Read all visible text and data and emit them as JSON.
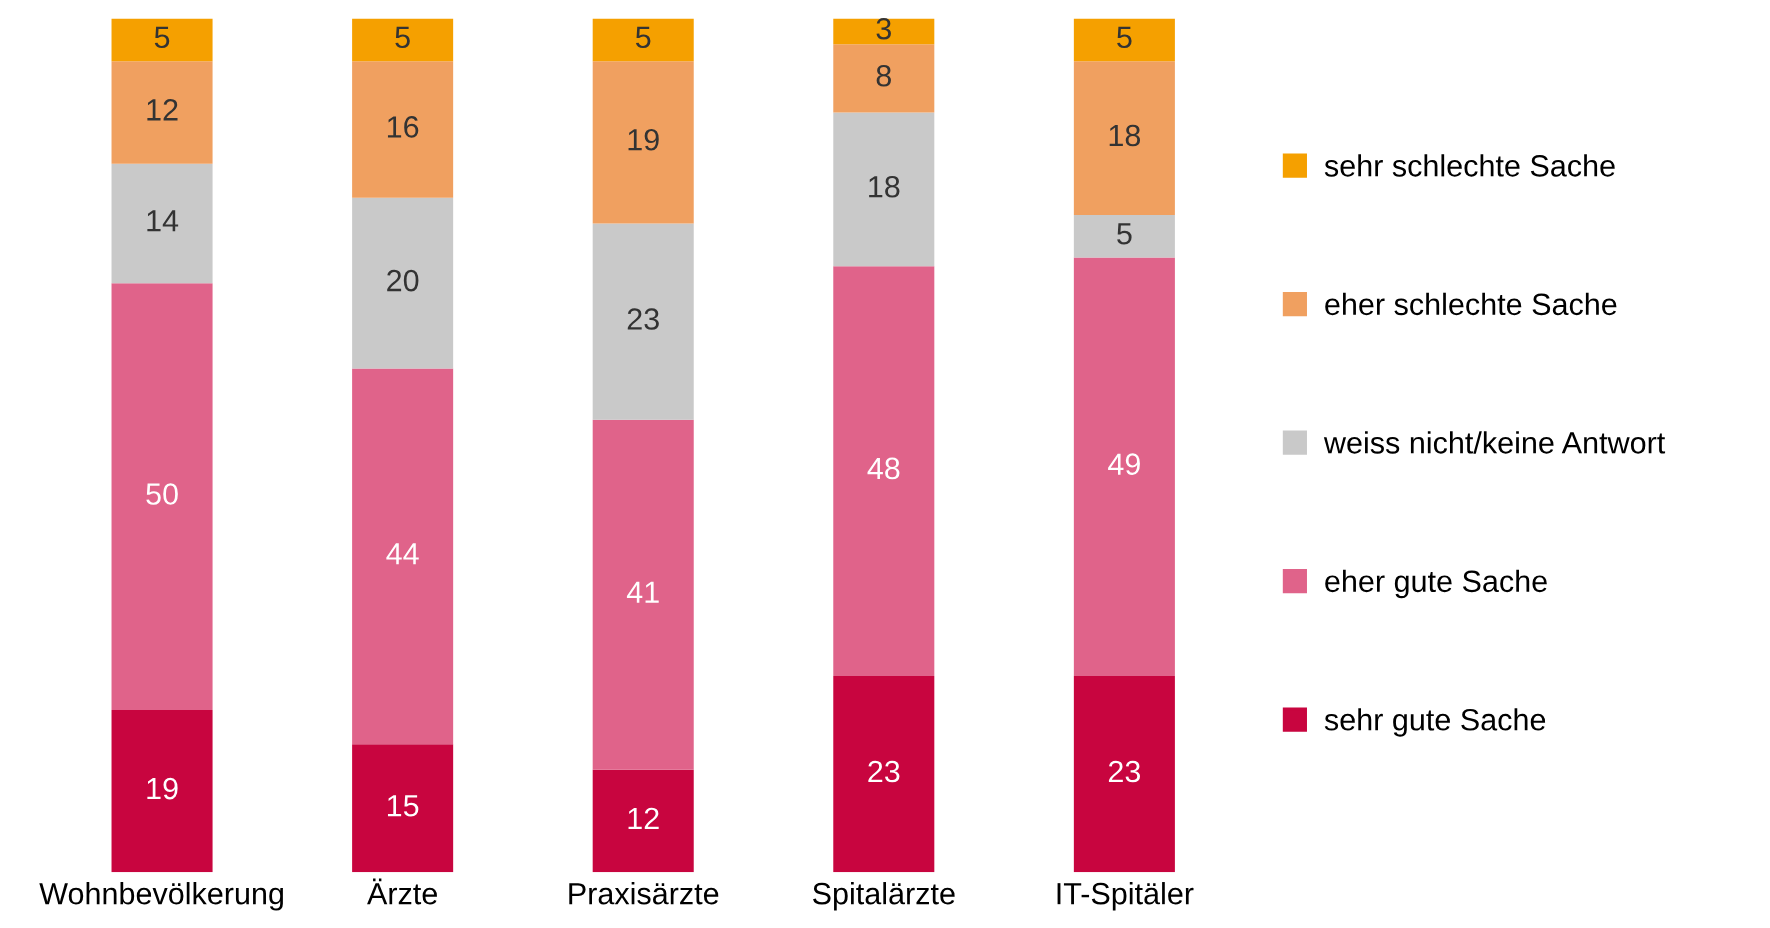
{
  "chart_data": {
    "type": "bar",
    "stacked": true,
    "data_labels": true,
    "legend": "right",
    "grid": false,
    "categories": [
      "Wohnbevölkerung",
      "Ärzte",
      "Praxisärzte",
      "Spitalärzte",
      "IT-Spitäler"
    ],
    "series": [
      {
        "name": "sehr gute Sache",
        "color": "#c8053f",
        "values": [
          19,
          15,
          12,
          23,
          23
        ]
      },
      {
        "name": "eher gute Sache",
        "color": "#e0638a",
        "values": [
          50,
          44,
          41,
          48,
          49
        ]
      },
      {
        "name": "weiss nicht/keine Antwort",
        "color": "#c9c9c9",
        "values": [
          14,
          20,
          23,
          18,
          5
        ]
      },
      {
        "name": "eher schlechte Sache",
        "color": "#f0a060",
        "values": [
          12,
          16,
          19,
          8,
          18
        ]
      },
      {
        "name": "sehr schlechte Sache",
        "color": "#f5a000",
        "values": [
          5,
          5,
          5,
          3,
          5
        ]
      }
    ]
  }
}
